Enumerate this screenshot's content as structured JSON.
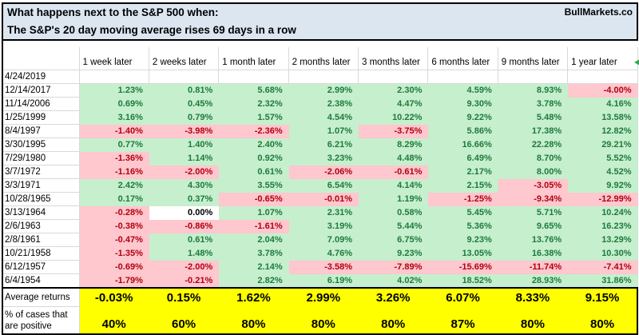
{
  "title": {
    "line1": "What happens next to the S&P 500 when:",
    "line2": "The S&P's 20 day moving average rises 69 days in a row",
    "brand": "BullMarkets.co"
  },
  "colors": {
    "title_bg": "#dce6f1",
    "grid": "#d9d9d9",
    "pos_bg": "#c6efce",
    "pos_text": "#1e7a3c",
    "neg_bg": "#ffc7ce",
    "neg_text": "#b00010",
    "yellow": "#ffff00",
    "flag_green": "#2fa84f"
  },
  "table": {
    "columns": [
      "1 week later",
      "2 weeks later",
      "1 month later",
      "2 months later",
      "3 months later",
      "6 months later",
      "9 months later",
      "1 year later"
    ],
    "rows": [
      {
        "date": "4/24/2019",
        "cells": [
          "",
          "",
          "",
          "",
          "",
          "",
          "",
          ""
        ],
        "fills": [
          "",
          "",
          "",
          "",
          "",
          "",
          "",
          ""
        ]
      },
      {
        "date": "12/14/2017",
        "cells": [
          "1.23%",
          "0.81%",
          "5.68%",
          "2.99%",
          "2.30%",
          "4.59%",
          "8.93%",
          "-4.00%"
        ],
        "fills": [
          "g",
          "g",
          "g",
          "g",
          "g",
          "g",
          "g",
          "r"
        ]
      },
      {
        "date": "11/14/2006",
        "cells": [
          "0.69%",
          "0.45%",
          "2.32%",
          "2.38%",
          "4.47%",
          "9.30%",
          "3.78%",
          "4.16%"
        ],
        "fills": [
          "g",
          "g",
          "g",
          "g",
          "g",
          "g",
          "g",
          "g"
        ]
      },
      {
        "date": "1/25/1999",
        "cells": [
          "3.16%",
          "0.79%",
          "1.57%",
          "4.54%",
          "10.22%",
          "9.22%",
          "5.48%",
          "13.58%"
        ],
        "fills": [
          "g",
          "g",
          "g",
          "g",
          "g",
          "g",
          "g",
          "g"
        ]
      },
      {
        "date": "8/4/1997",
        "cells": [
          "-1.40%",
          "-3.98%",
          "-2.36%",
          "1.07%",
          "-3.75%",
          "5.86%",
          "17.38%",
          "12.82%"
        ],
        "fills": [
          "r",
          "r",
          "r",
          "g",
          "r",
          "g",
          "g",
          "g"
        ]
      },
      {
        "date": "3/30/1995",
        "cells": [
          "0.77%",
          "1.40%",
          "2.40%",
          "6.21%",
          "8.29%",
          "16.66%",
          "22.28%",
          "29.21%"
        ],
        "fills": [
          "g",
          "g",
          "g",
          "g",
          "g",
          "g",
          "g",
          "g"
        ]
      },
      {
        "date": "7/29/1980",
        "cells": [
          "-1.36%",
          "1.14%",
          "0.92%",
          "3.23%",
          "4.48%",
          "6.49%",
          "8.70%",
          "5.52%"
        ],
        "fills": [
          "r",
          "g",
          "g",
          "g",
          "g",
          "g",
          "g",
          "g"
        ]
      },
      {
        "date": "3/7/1972",
        "cells": [
          "-1.16%",
          "-2.00%",
          "0.61%",
          "-2.06%",
          "-0.61%",
          "2.17%",
          "8.00%",
          "4.52%"
        ],
        "fills": [
          "r",
          "r",
          "g",
          "r",
          "r",
          "g",
          "g",
          "g"
        ]
      },
      {
        "date": "3/3/1971",
        "cells": [
          "2.42%",
          "4.30%",
          "3.55%",
          "6.54%",
          "4.14%",
          "2.15%",
          "-3.05%",
          "9.92%"
        ],
        "fills": [
          "g",
          "g",
          "g",
          "g",
          "g",
          "g",
          "r",
          "g"
        ]
      },
      {
        "date": "10/28/1965",
        "cells": [
          "0.17%",
          "0.37%",
          "-0.65%",
          "-0.01%",
          "1.19%",
          "-1.25%",
          "-9.34%",
          "-12.99%"
        ],
        "fills": [
          "g",
          "g",
          "r",
          "r",
          "g",
          "r",
          "r",
          "r"
        ]
      },
      {
        "date": "3/13/1964",
        "cells": [
          "-0.28%",
          "0.00%",
          "1.07%",
          "2.31%",
          "0.58%",
          "5.45%",
          "5.71%",
          "10.24%"
        ],
        "fills": [
          "r",
          "w",
          "g",
          "g",
          "g",
          "g",
          "g",
          "g"
        ]
      },
      {
        "date": "2/6/1963",
        "cells": [
          "-0.38%",
          "-0.86%",
          "-1.61%",
          "3.19%",
          "5.44%",
          "5.36%",
          "9.65%",
          "16.23%"
        ],
        "fills": [
          "r",
          "r",
          "r",
          "g",
          "g",
          "g",
          "g",
          "g"
        ]
      },
      {
        "date": "2/8/1961",
        "cells": [
          "-0.47%",
          "0.61%",
          "2.04%",
          "7.09%",
          "6.75%",
          "9.23%",
          "13.76%",
          "13.29%"
        ],
        "fills": [
          "r",
          "g",
          "g",
          "g",
          "g",
          "g",
          "g",
          "g"
        ]
      },
      {
        "date": "10/21/1958",
        "cells": [
          "-1.35%",
          "1.48%",
          "3.78%",
          "4.76%",
          "9.23%",
          "13.05%",
          "16.38%",
          "10.30%"
        ],
        "fills": [
          "r",
          "g",
          "g",
          "g",
          "g",
          "g",
          "g",
          "g"
        ]
      },
      {
        "date": "6/12/1957",
        "cells": [
          "-0.69%",
          "-2.00%",
          "2.14%",
          "-3.58%",
          "-7.89%",
          "-15.69%",
          "-11.74%",
          "-7.41%"
        ],
        "fills": [
          "r",
          "r",
          "g",
          "r",
          "r",
          "r",
          "r",
          "r"
        ]
      },
      {
        "date": "6/4/1954",
        "cells": [
          "-1.79%",
          "-0.21%",
          "2.82%",
          "6.19%",
          "4.02%",
          "18.52%",
          "28.93%",
          "31.86%"
        ],
        "fills": [
          "r",
          "r",
          "g",
          "g",
          "g",
          "g",
          "g",
          "g"
        ]
      }
    ],
    "summary": [
      {
        "label": "Average returns",
        "values": [
          "-0.03%",
          "0.15%",
          "1.62%",
          "2.99%",
          "3.26%",
          "6.07%",
          "8.33%",
          "9.15%"
        ]
      },
      {
        "label": "% of cases that are positive",
        "values": [
          "40%",
          "60%",
          "80%",
          "80%",
          "80%",
          "87%",
          "80%",
          "80%"
        ]
      }
    ]
  }
}
